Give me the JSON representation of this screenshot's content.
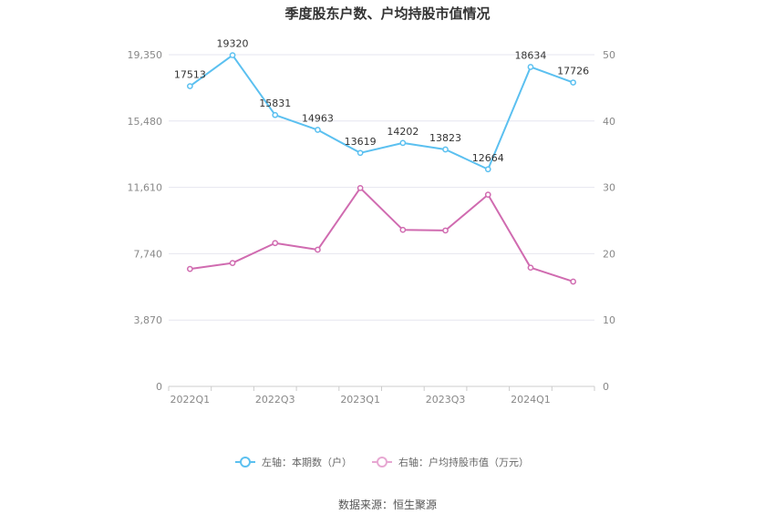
{
  "title": "季度股东户数、户均持股市值情况",
  "source": "数据来源：恒生聚源",
  "chart_data": {
    "type": "line",
    "x": [
      "2022Q1",
      "2022Q2",
      "2022Q3",
      "2022Q4",
      "2023Q1",
      "2023Q2",
      "2023Q3",
      "2023Q4",
      "2024Q1",
      "2024Q2"
    ],
    "x_tick_labels": [
      "2022Q1",
      "",
      "2022Q3",
      "",
      "2023Q1",
      "",
      "2023Q3",
      "",
      "2024Q1",
      ""
    ],
    "left_axis": {
      "ylim": [
        0,
        19350
      ],
      "ticks": [
        "0",
        "3,870",
        "7,740",
        "11,610",
        "15,480",
        "19,350"
      ]
    },
    "right_axis": {
      "ylim": [
        0,
        50
      ],
      "ticks": [
        "0",
        "10",
        "20",
        "30",
        "40",
        "50"
      ]
    },
    "series": [
      {
        "name": "左轴：本期数（户）",
        "axis": "left",
        "color": "#5bc0f0",
        "values": [
          17513,
          19320,
          15831,
          14963,
          13619,
          14202,
          13823,
          12664,
          18634,
          17726
        ],
        "labels": [
          "17513",
          "19320",
          "15831",
          "14963",
          "13619",
          "14202",
          "13823",
          "12664",
          "18634",
          "17726"
        ]
      },
      {
        "name": "右轴：户均持股市值（万元）",
        "axis": "right",
        "color": "#d06bb0",
        "values": [
          17.7,
          18.6,
          21.6,
          20.6,
          29.9,
          23.6,
          23.5,
          28.9,
          17.9,
          15.8
        ]
      }
    ],
    "grid": true,
    "legend": "bottom"
  }
}
